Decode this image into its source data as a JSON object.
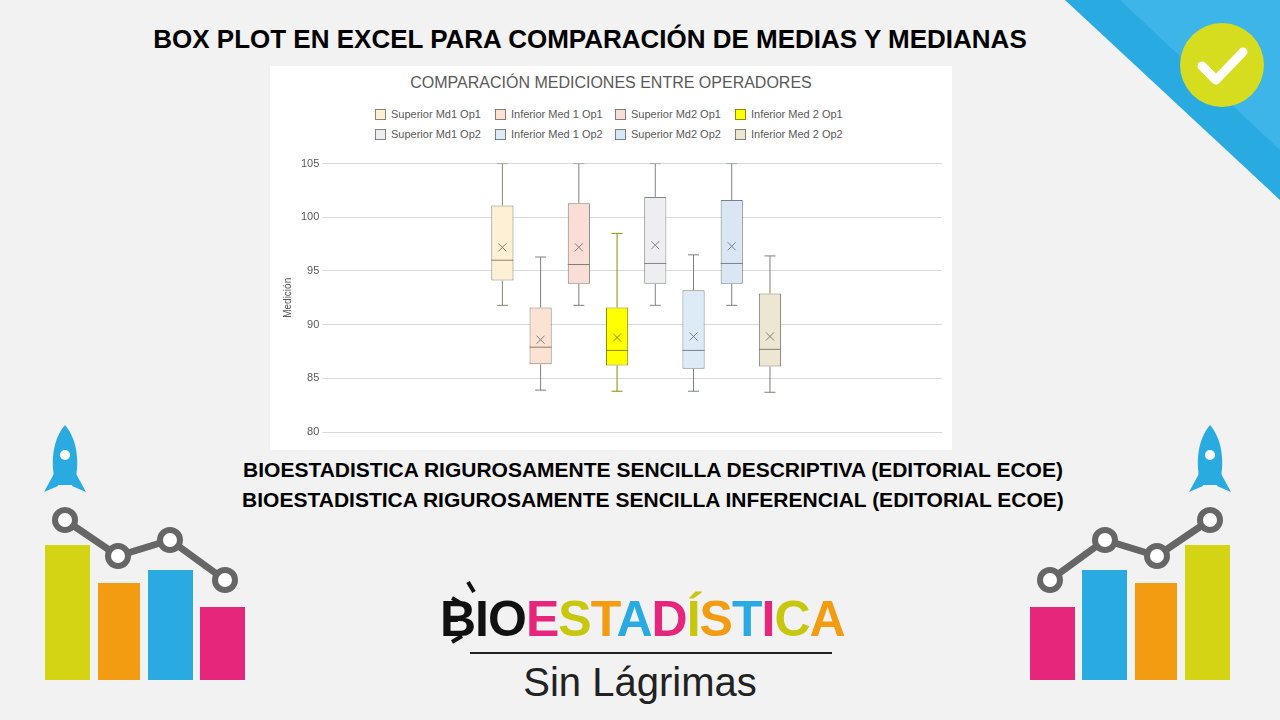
{
  "page": {
    "heading": "BOX PLOT EN EXCEL PARA COMPARACIÓN DE MEDIAS Y MEDIANAS",
    "books": [
      "BIOESTADISTICA RIGUROSAMENTE SENCILLA  DESCRIPTIVA (EDITORIAL ECOE)",
      "BIOESTADISTICA RIGUROSAMENTE SENCILLA  INFERENCIAL (EDITORIAL ECOE)"
    ],
    "logo": {
      "brand": "BIOESTADÍSTICA",
      "tagline": "Sin Lágrimas"
    }
  },
  "chart_data": {
    "type": "box",
    "title": "COMPARACIÓN MEDICIONES ENTRE OPERADORES",
    "y_label": "Medición",
    "categories": [
      null
    ],
    "series": [
      {
        "name": "Superior Md1 Op1",
        "color": "#fdf0d5",
        "min": [
          91.8
        ],
        "q1": [
          94.1
        ],
        "median": [
          96.0
        ],
        "q3": [
          101.1
        ],
        "max": [
          105.0
        ],
        "mean": [
          97.2
        ]
      },
      {
        "name": "Inferior Med 1 Op1",
        "color": "#fbe2d2",
        "min": [
          83.9
        ],
        "q1": [
          86.3
        ],
        "median": [
          87.9
        ],
        "q3": [
          91.6
        ],
        "max": [
          96.3
        ],
        "mean": [
          88.6
        ]
      },
      {
        "name": "Superior Md2 Op1",
        "color": "#f8ded6",
        "min": [
          91.8
        ],
        "q1": [
          93.8
        ],
        "median": [
          95.6
        ],
        "q3": [
          101.3
        ],
        "max": [
          105.0
        ],
        "mean": [
          97.2
        ]
      },
      {
        "name": "Inferior Med 2 Op1",
        "color": "#ffff00",
        "min": [
          83.8
        ],
        "q1": [
          86.2
        ],
        "median": [
          87.6
        ],
        "q3": [
          91.6
        ],
        "max": [
          98.5
        ],
        "mean": [
          88.8
        ]
      },
      {
        "name": "Superior Md1 Op2",
        "color": "#eceef2",
        "min": [
          91.8
        ],
        "q1": [
          93.8
        ],
        "median": [
          95.7
        ],
        "q3": [
          101.9
        ],
        "max": [
          105.0
        ],
        "mean": [
          97.4
        ]
      },
      {
        "name": "Inferior Med 1 Op2",
        "color": "#dcebf5",
        "min": [
          83.8
        ],
        "q1": [
          85.9
        ],
        "median": [
          87.6
        ],
        "q3": [
          93.2
        ],
        "max": [
          96.5
        ],
        "mean": [
          88.9
        ]
      },
      {
        "name": "Superior Md2 Op2",
        "color": "#d9e7f5",
        "min": [
          91.8
        ],
        "q1": [
          93.8
        ],
        "median": [
          95.7
        ],
        "q3": [
          101.6
        ],
        "max": [
          105.0
        ],
        "mean": [
          97.3
        ]
      },
      {
        "name": "Inferior Med 2 Op2",
        "color": "#ede6d2",
        "min": [
          83.7
        ],
        "q1": [
          86.1
        ],
        "median": [
          87.7
        ],
        "q3": [
          92.9
        ],
        "max": [
          96.4
        ],
        "mean": [
          88.9
        ]
      }
    ],
    "ylim": [
      80,
      105
    ],
    "yticks": [
      80,
      85,
      90,
      95,
      100,
      105
    ],
    "grid": true,
    "legend": "top",
    "tick_labels": "y"
  }
}
